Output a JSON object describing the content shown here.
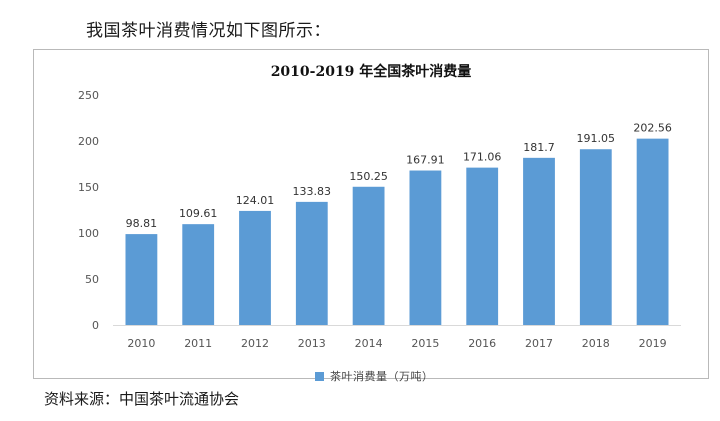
{
  "intro_text": "我国茶叶消费情况如下图所示：",
  "source_text": "资料来源：中国茶叶流通协会",
  "colors": {
    "bar": "#5b9bd5",
    "gridline": "#d9d9d9"
  },
  "chart_data": {
    "type": "bar",
    "title": "2010-2019 年全国茶叶消费量",
    "categories": [
      "2010",
      "2011",
      "2012",
      "2013",
      "2014",
      "2015",
      "2016",
      "2017",
      "2018",
      "2019"
    ],
    "series": [
      {
        "name": "茶叶消费量（万吨）",
        "values": [
          98.81,
          109.61,
          124.01,
          133.83,
          150.25,
          167.91,
          171.06,
          181.7,
          191.05,
          202.56
        ],
        "labels": [
          "98.81",
          "109.61",
          "124.01",
          "133.83",
          "150.25",
          "167.91",
          "171.06",
          "181.7",
          "191.05",
          "202.56"
        ]
      }
    ],
    "yticks": [
      0,
      50,
      100,
      150,
      200,
      250
    ],
    "ylim": [
      0,
      250
    ],
    "xlabel": "",
    "ylabel": "",
    "grid": false,
    "legend_position": "bottom"
  }
}
